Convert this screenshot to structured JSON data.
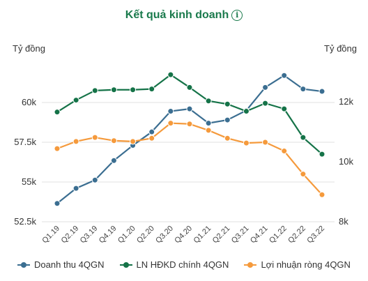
{
  "header": {
    "title": "Kết quả kinh doanh",
    "info_glyph": "i",
    "info_icon": "info-icon"
  },
  "chart_data": {
    "type": "line",
    "title": "Kết quả kinh doanh",
    "left_axis_label": "Tỷ đồng",
    "right_axis_label": "Tỷ đồng",
    "categories": [
      "Q1.19",
      "Q2.19",
      "Q3.19",
      "Q4.19",
      "Q1.20",
      "Q2.20",
      "Q3.20",
      "Q4.20",
      "Q1.21",
      "Q2.21",
      "Q3.21",
      "Q4.21",
      "Q1.22",
      "Q2.22",
      "Q3.22"
    ],
    "left_axis": {
      "min": 52.5,
      "max": 62.5,
      "ticks": [
        52.5,
        55,
        57.5,
        60
      ],
      "tick_labels": [
        "52.5k",
        "55k",
        "57.5k",
        "60k"
      ]
    },
    "right_axis": {
      "min": 8,
      "max": 13.3,
      "ticks": [
        8,
        10,
        12
      ],
      "tick_labels": [
        "8k",
        "10k",
        "12k"
      ]
    },
    "grid": true,
    "legend_position": "bottom",
    "series": [
      {
        "name": "Doanh thu 4QGN",
        "axis": "left",
        "color": "#3b6e91",
        "values": [
          53.65,
          54.6,
          55.12,
          56.35,
          57.3,
          58.15,
          59.45,
          59.6,
          58.7,
          58.9,
          59.5,
          60.95,
          61.7,
          60.85,
          60.7
        ]
      },
      {
        "name": "LN HĐKD chính 4QGN",
        "axis": "left",
        "color": "#157348",
        "values": [
          59.4,
          60.15,
          60.75,
          60.8,
          60.8,
          60.85,
          61.75,
          60.95,
          60.1,
          59.9,
          59.45,
          59.95,
          59.6,
          57.8,
          56.75
        ]
      },
      {
        "name": "Lợi nhuận ròng 4QGN",
        "axis": "left",
        "color": "#f59a3c",
        "values": [
          57.1,
          57.55,
          57.8,
          57.6,
          57.55,
          57.75,
          58.7,
          58.65,
          58.25,
          57.75,
          57.45,
          57.5,
          56.95,
          55.5,
          54.2
        ]
      }
    ]
  }
}
